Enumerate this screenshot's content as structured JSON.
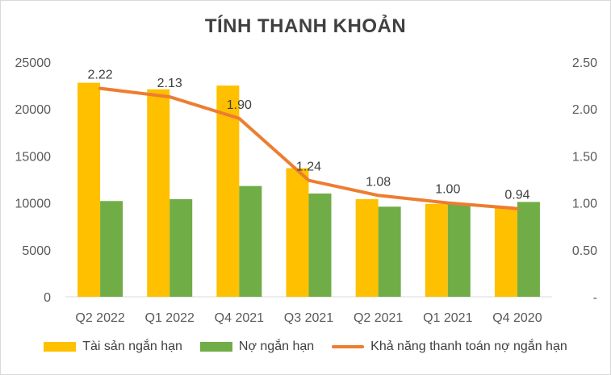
{
  "chart_data": {
    "type": "bar",
    "title": "TÍNH THANH KHOẢN",
    "categories": [
      "Q2 2022",
      "Q1 2022",
      "Q4 2021",
      "Q3 2021",
      "Q2 2021",
      "Q1 2021",
      "Q4 2020"
    ],
    "series": [
      {
        "name": "Tài sản ngắn hạn",
        "type": "bar",
        "axis": "left",
        "color": "#FFC000",
        "values": [
          22800,
          22100,
          22500,
          13700,
          10400,
          9900,
          9500
        ]
      },
      {
        "name": "Nợ ngắn hạn",
        "type": "bar",
        "axis": "left",
        "color": "#70AD47",
        "values": [
          10200,
          10400,
          11800,
          11000,
          9600,
          9900,
          10100
        ]
      },
      {
        "name": "Khả năng thanh toán nợ ngắn hạn",
        "type": "line",
        "axis": "right",
        "color": "#ED7D31",
        "values": [
          2.22,
          2.13,
          1.9,
          1.24,
          1.08,
          1.0,
          0.94
        ],
        "labels": [
          "2.22",
          "2.13",
          "1.90",
          "1.24",
          "1.08",
          "1.00",
          "0.94"
        ]
      }
    ],
    "y_left": {
      "min": 0,
      "max": 25000,
      "ticks": [
        "0",
        "5000",
        "10000",
        "15000",
        "20000",
        "25000"
      ]
    },
    "y_right": {
      "min": 0,
      "max": 2.5,
      "ticks": [
        "-",
        "0.50",
        "1.00",
        "1.50",
        "2.00",
        "2.50"
      ]
    },
    "grid": false,
    "legend_position": "bottom"
  }
}
